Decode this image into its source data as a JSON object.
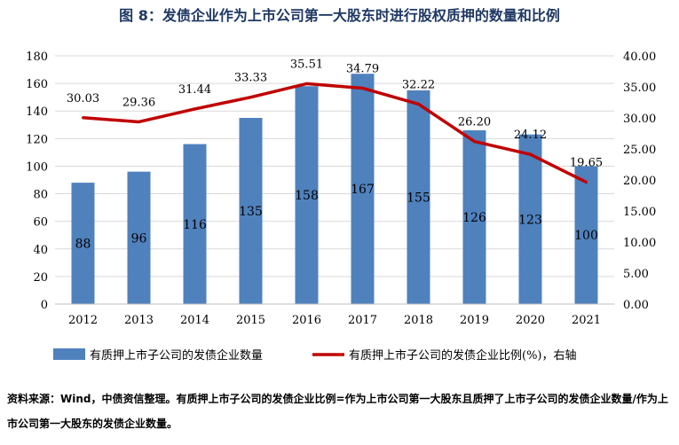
{
  "title": "图 8：发债企业作为上市公司第一大股东时进行股权质押的数量和比例",
  "footnote": "资料来源：Wind，中债资信整理。有质押上市子公司的发债企业比例=作为上市公司第一大股东且质押了上市子公司的发债企业数量/作为上市公司第一大股东的发债企业数量。",
  "colors": {
    "bar": "#4f81bd",
    "line": "#c00000",
    "grid": "#d9d9d9",
    "axis": "#bfbfbf"
  },
  "chart_data": {
    "type": "bar+line",
    "categories": [
      "2012",
      "2013",
      "2014",
      "2015",
      "2016",
      "2017",
      "2018",
      "2019",
      "2020",
      "2021"
    ],
    "series": [
      {
        "name": "有质押上市子公司的发债企业数量",
        "type": "bar",
        "axis": "left",
        "values": [
          88,
          96,
          116,
          135,
          158,
          167,
          155,
          126,
          123,
          100
        ],
        "labels": [
          "88",
          "96",
          "116",
          "135",
          "158",
          "167",
          "155",
          "126",
          "123",
          "100"
        ]
      },
      {
        "name": "有质押上市子公司的发债企业比例(%)，右轴",
        "type": "line",
        "axis": "right",
        "values": [
          30.03,
          29.36,
          31.44,
          33.33,
          35.51,
          34.79,
          32.22,
          26.2,
          24.12,
          19.65
        ],
        "labels": [
          "30.03",
          "29.36",
          "31.44",
          "33.33",
          "35.51",
          "34.79",
          "32.22",
          "26.20",
          "24.12",
          "19.65"
        ]
      }
    ],
    "y_left": {
      "min": 0,
      "max": 180,
      "ticks": [
        "0",
        "20",
        "40",
        "60",
        "80",
        "100",
        "120",
        "140",
        "160",
        "180"
      ]
    },
    "y_right": {
      "min": 0,
      "max": 40,
      "ticks": [
        "0.00",
        "5.00",
        "10.00",
        "15.00",
        "20.00",
        "25.00",
        "30.00",
        "35.00",
        "40.00"
      ]
    },
    "grid": true,
    "legend_position": "bottom"
  }
}
